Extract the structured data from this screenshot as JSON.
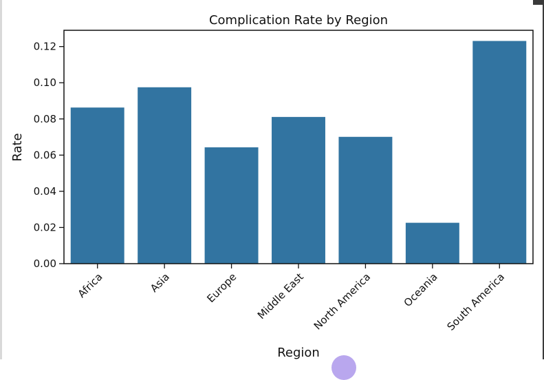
{
  "chart_data": {
    "type": "bar",
    "title": "Complication Rate by Region",
    "xlabel": "Region",
    "ylabel": "Rate",
    "categories": [
      "Africa",
      "Asia",
      "Europe",
      "Middle East",
      "North America",
      "Oceania",
      "South America"
    ],
    "values": [
      0.0863,
      0.0975,
      0.0643,
      0.0811,
      0.0701,
      0.0226,
      0.1231
    ],
    "ylim": [
      0,
      0.129
    ],
    "yticks": [
      "0.00",
      "0.02",
      "0.04",
      "0.06",
      "0.08",
      "0.10",
      "0.12"
    ],
    "bar_color": "#3274a1",
    "grid": false,
    "legend": "none"
  }
}
